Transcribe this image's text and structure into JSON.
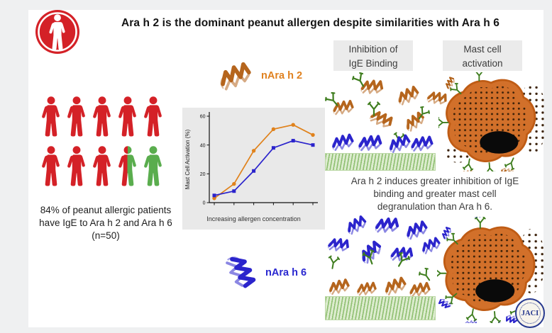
{
  "title": "Ara h 2 is the dominant peanut allergen despite similarities with Ara h 6",
  "colors": {
    "red": "#d42127",
    "green": "#5aad4e",
    "orange_line": "#e0821c",
    "blue_line": "#2b24cc",
    "antibody_green": "#3e7d1e",
    "mast_orange": "#d2702a",
    "granule_brown": "#3a2008"
  },
  "left": {
    "people": [
      "red",
      "red",
      "red",
      "red",
      "red",
      "red",
      "red",
      "red",
      "half",
      "green"
    ],
    "caption": "84% of peanut allergic patients\nhave IgE to Ara h 2 and Ara h 6\n(n=50)"
  },
  "middle": {
    "top_label": "nAra h 2",
    "bottom_label": "nAra h 6"
  },
  "chart_data": {
    "type": "line",
    "x": [
      1,
      2,
      3,
      4,
      5,
      6
    ],
    "series": [
      {
        "name": "nAra h 2",
        "color": "#e0821c",
        "marker": "circle",
        "values": [
          3,
          13,
          36,
          51,
          54,
          47
        ]
      },
      {
        "name": "nAra h 6",
        "color": "#2b24cc",
        "marker": "square",
        "values": [
          5,
          8,
          22,
          38,
          43,
          40
        ]
      }
    ],
    "title": "",
    "ylabel": "Mast Cell Activation (%)",
    "xlabel": "Increasing allergen concentration",
    "ylim": [
      0,
      60
    ],
    "yticks": [
      0,
      20,
      40,
      60
    ],
    "grid": false,
    "legend": "none"
  },
  "right": {
    "col1_header": "Inhibition of\nIgE Binding",
    "col2_header": "Mast cell\nactivation",
    "caption": "Ara h 2 induces greater inhibition of IgE\nbinding and greater mast cell\ndegranulation than Ara h 6."
  },
  "logo": {
    "text": "JACI"
  }
}
